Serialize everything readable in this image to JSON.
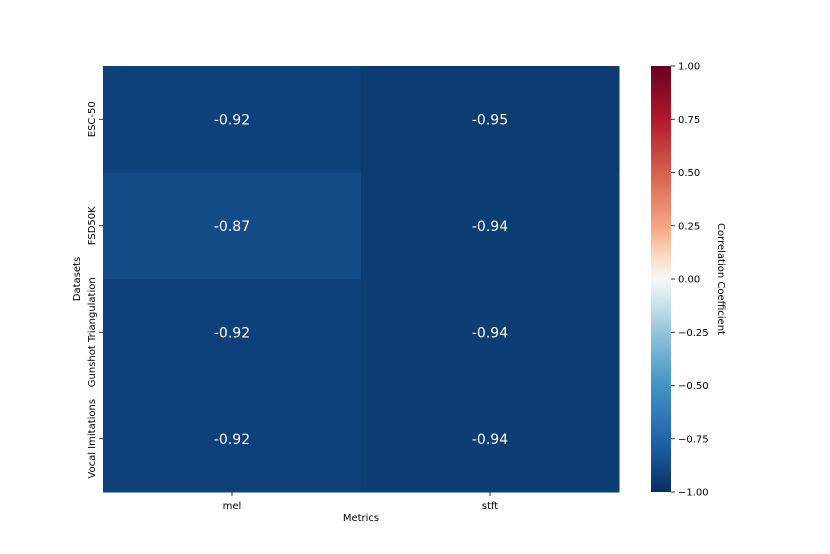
{
  "chart_data": {
    "type": "heatmap",
    "title": "",
    "xlabel": "Metrics",
    "ylabel": "Datasets",
    "columns": [
      "mel",
      "stft"
    ],
    "rows": [
      "ESC-50",
      "FSD50K",
      "Gunshot Triangulation",
      "Vocal Imitations"
    ],
    "values": [
      [
        -0.92,
        -0.95
      ],
      [
        -0.87,
        -0.94
      ],
      [
        -0.92,
        -0.94
      ],
      [
        -0.92,
        -0.94
      ]
    ],
    "annotations": [
      [
        "-0.92",
        "-0.95"
      ],
      [
        "-0.87",
        "-0.94"
      ],
      [
        "-0.92",
        "-0.94"
      ],
      [
        "-0.92",
        "-0.94"
      ]
    ],
    "colorbar": {
      "label": "Correlation Coefficient",
      "range": [
        -1.0,
        1.0
      ],
      "ticks": [
        "1.00",
        "0.75",
        "0.50",
        "0.25",
        "0.00",
        "−0.25",
        "−0.50",
        "−0.75",
        "−1.00"
      ],
      "colormap": "RdBu_r"
    }
  }
}
